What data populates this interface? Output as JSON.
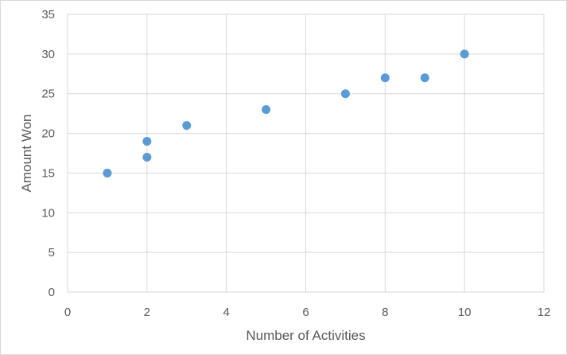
{
  "chart_data": {
    "type": "scatter",
    "title": "",
    "xlabel": "Number of Activities",
    "ylabel": "Amount Won",
    "xlim": [
      0,
      12
    ],
    "ylim": [
      0,
      35
    ],
    "xticks": [
      0,
      2,
      4,
      6,
      8,
      10,
      12
    ],
    "yticks": [
      0,
      5,
      10,
      15,
      20,
      25,
      30,
      35
    ],
    "grid": true,
    "legend": "none",
    "points": [
      {
        "x": 1,
        "y": 15
      },
      {
        "x": 2,
        "y": 17
      },
      {
        "x": 2,
        "y": 19
      },
      {
        "x": 3,
        "y": 21
      },
      {
        "x": 5,
        "y": 23
      },
      {
        "x": 7,
        "y": 25
      },
      {
        "x": 8,
        "y": 27
      },
      {
        "x": 9,
        "y": 27
      },
      {
        "x": 10,
        "y": 30
      }
    ],
    "colors": {
      "marker": "#5b9bd5",
      "grid": "#d9d9d9",
      "text": "#595959"
    }
  }
}
